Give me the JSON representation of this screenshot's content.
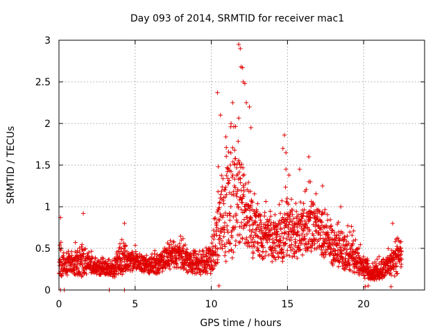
{
  "chart_data": {
    "type": "scatter",
    "title": "Day 093 of 2014, SRMTID for receiver mac1",
    "xlabel": "GPS time / hours",
    "ylabel": "SRMTID / TECUs",
    "xlim": [
      0,
      24
    ],
    "ylim": [
      0,
      3
    ],
    "x_ticks": [
      0,
      5,
      10,
      15,
      20
    ],
    "x_tick_labels": [
      "0",
      "5",
      "10",
      "15",
      "20"
    ],
    "y_ticks": [
      0,
      0.5,
      1,
      1.5,
      2,
      2.5,
      3
    ],
    "y_tick_labels": [
      "0",
      "0.5",
      "1",
      "1.5",
      "2",
      "2.5",
      "3"
    ],
    "grid": true,
    "marker": "+",
    "marker_color": "#e00000",
    "envelope": {
      "description": "Approximate typical level (median) and spread envelope of the dense scatter; individual points are not separately resolvable.",
      "x": [
        0.0,
        0.5,
        1.0,
        1.5,
        2.0,
        2.5,
        3.0,
        3.5,
        4.0,
        4.5,
        5.0,
        5.5,
        6.0,
        6.5,
        7.0,
        7.5,
        8.0,
        8.5,
        9.0,
        9.5,
        10.0,
        10.5,
        11.0,
        11.5,
        12.0,
        12.5,
        13.0,
        13.5,
        14.0,
        14.5,
        15.0,
        15.5,
        16.0,
        16.5,
        17.0,
        17.5,
        18.0,
        18.5,
        19.0,
        19.5,
        20.0,
        20.5,
        21.0,
        21.5,
        22.0,
        22.5
      ],
      "median": [
        0.3,
        0.3,
        0.28,
        0.32,
        0.28,
        0.25,
        0.25,
        0.22,
        0.35,
        0.32,
        0.32,
        0.3,
        0.28,
        0.28,
        0.35,
        0.38,
        0.38,
        0.32,
        0.3,
        0.28,
        0.35,
        0.7,
        0.85,
        1.0,
        1.0,
        0.7,
        0.65,
        0.6,
        0.55,
        0.55,
        0.7,
        0.6,
        0.65,
        0.7,
        0.65,
        0.55,
        0.5,
        0.45,
        0.4,
        0.35,
        0.25,
        0.15,
        0.22,
        0.25,
        0.3,
        0.4
      ],
      "spread": [
        0.25,
        0.2,
        0.2,
        0.3,
        0.15,
        0.12,
        0.12,
        0.12,
        0.3,
        0.18,
        0.15,
        0.15,
        0.15,
        0.15,
        0.2,
        0.2,
        0.2,
        0.2,
        0.18,
        0.18,
        0.3,
        0.6,
        0.9,
        1.0,
        0.8,
        0.6,
        0.45,
        0.4,
        0.4,
        0.45,
        0.5,
        0.4,
        0.4,
        0.45,
        0.4,
        0.35,
        0.35,
        0.3,
        0.3,
        0.25,
        0.18,
        0.12,
        0.15,
        0.18,
        0.25,
        0.25
      ]
    },
    "outliers": [
      {
        "x": 11.8,
        "y": 2.95
      },
      {
        "x": 11.9,
        "y": 2.9
      },
      {
        "x": 11.95,
        "y": 2.68
      },
      {
        "x": 12.05,
        "y": 2.67
      },
      {
        "x": 12.1,
        "y": 2.5
      },
      {
        "x": 12.2,
        "y": 2.48
      },
      {
        "x": 10.4,
        "y": 2.37
      },
      {
        "x": 12.3,
        "y": 2.25
      },
      {
        "x": 10.6,
        "y": 2.1
      },
      {
        "x": 11.4,
        "y": 2.25
      },
      {
        "x": 12.5,
        "y": 2.2
      },
      {
        "x": 11.3,
        "y": 2.0
      },
      {
        "x": 12.6,
        "y": 1.95
      },
      {
        "x": 14.8,
        "y": 1.86
      },
      {
        "x": 14.7,
        "y": 1.7
      },
      {
        "x": 14.9,
        "y": 1.65
      },
      {
        "x": 16.4,
        "y": 1.6
      },
      {
        "x": 15.8,
        "y": 1.45
      },
      {
        "x": 14.9,
        "y": 1.45
      },
      {
        "x": 17.3,
        "y": 1.25
      },
      {
        "x": 16.5,
        "y": 1.3
      },
      {
        "x": 15.1,
        "y": 1.38
      },
      {
        "x": 1.6,
        "y": 0.92
      },
      {
        "x": 0.1,
        "y": 0.87
      },
      {
        "x": 4.3,
        "y": 0.8
      },
      {
        "x": 18.5,
        "y": 1.0
      },
      {
        "x": 21.9,
        "y": 0.8
      },
      {
        "x": 10.5,
        "y": 0.05
      },
      {
        "x": 0.1,
        "y": 0.0
      },
      {
        "x": 0.35,
        "y": 0.0
      },
      {
        "x": 3.3,
        "y": 0.0
      },
      {
        "x": 4.3,
        "y": 0.0
      },
      {
        "x": 20.1,
        "y": 0.04
      },
      {
        "x": 20.3,
        "y": 0.05
      },
      {
        "x": 21.8,
        "y": 0.04
      }
    ]
  }
}
